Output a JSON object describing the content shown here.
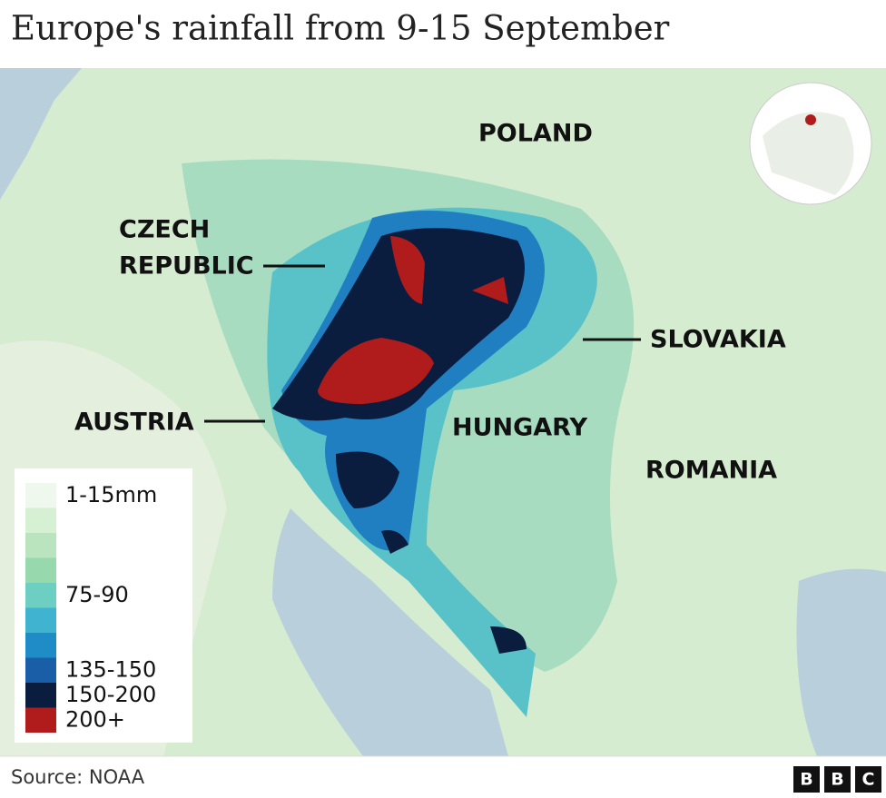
{
  "header": {
    "title": "Europe's rainfall from 9-15 September"
  },
  "labels": {
    "poland": "POLAND",
    "czech_1": "CZECH",
    "czech_2": "REPUBLIC",
    "slovakia": "SLOVAKIA",
    "austria": "AUSTRIA",
    "hungary": "HUNGARY",
    "romania": "ROMANIA"
  },
  "legend": [
    {
      "color": "#eef8ec",
      "label": "1-15mm"
    },
    {
      "color": "#d6f0d4"
    },
    {
      "color": "#b9e4bd"
    },
    {
      "color": "#98d8ad"
    },
    {
      "color": "#6ccfc2",
      "label": "75-90"
    },
    {
      "color": "#3fb3cf"
    },
    {
      "color": "#1f8cc8"
    },
    {
      "color": "#1a5ea8",
      "label": "135-150"
    },
    {
      "color": "#0b1d3f",
      "label": "150-200"
    },
    {
      "color": "#b01c1c",
      "label": "200+"
    }
  ],
  "footer": {
    "source": "Source: NOAA",
    "logo": [
      "B",
      "B",
      "C"
    ]
  }
}
